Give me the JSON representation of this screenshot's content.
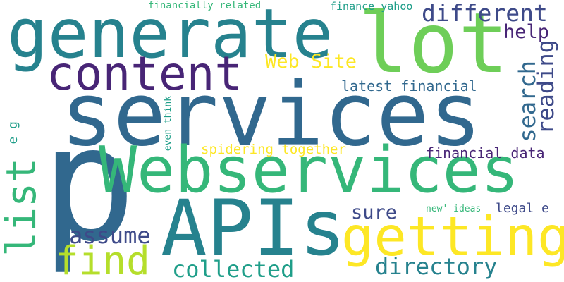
{
  "cloud": {
    "palette": {
      "deep_purple": "#482576",
      "indigo": "#3e4a89",
      "blue": "#31688e",
      "teal": "#26828e",
      "sea_green": "#1f9e89",
      "green": "#35b779",
      "light_green": "#6ece58",
      "lime": "#b5de2b",
      "yellow": "#fde725"
    },
    "words": {
      "services": "services",
      "p": "p",
      "generate": "generate",
      "lot": "lot",
      "webservices": "Webservices",
      "apis": "APIs",
      "content": "content",
      "getting": "getting",
      "list": "list",
      "find": "find",
      "different": "different",
      "directory": "directory",
      "collected": "collected",
      "assume": "assume",
      "search": "search",
      "reading": "reading",
      "help": "help",
      "web_site": "Web Site",
      "sure": "sure",
      "latest_financial": "latest financial",
      "financial_data": "financial data",
      "spidering_together": "spidering together",
      "financially_related": "financially related",
      "finance_yahoo": "finance yahoo",
      "legal_e": "legal e",
      "e_g": "e g",
      "even_think": "even think",
      "new_ideas": "new' ideas"
    }
  }
}
